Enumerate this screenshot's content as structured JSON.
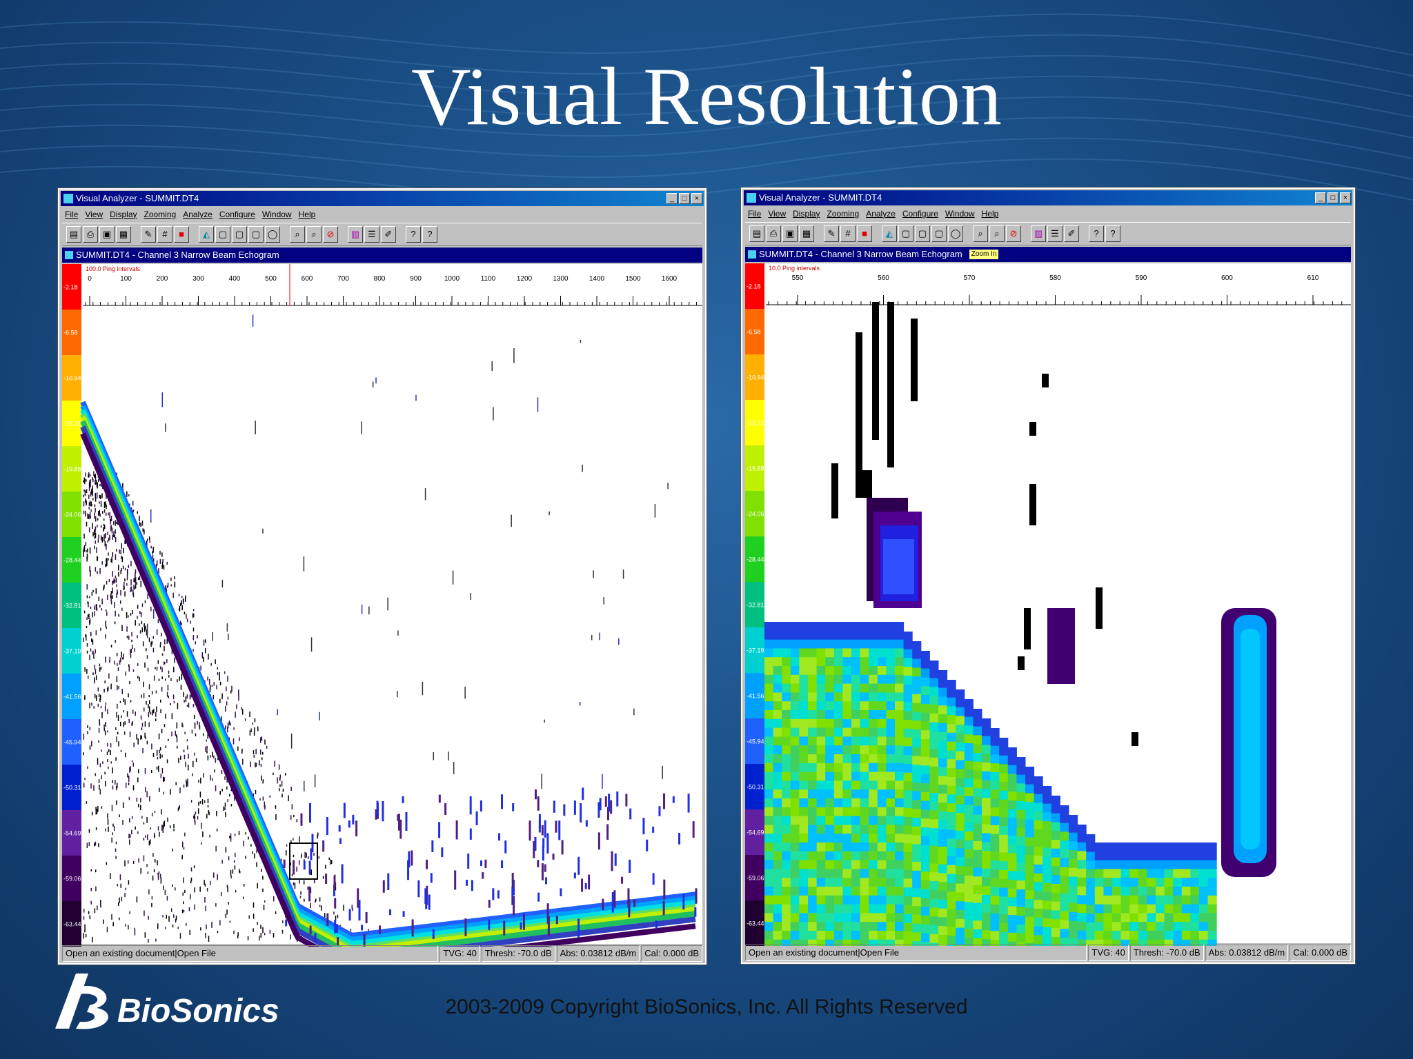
{
  "slide": {
    "title": "Visual Resolution",
    "copyright": "2003-2009 Copyright BioSonics, Inc.  All Rights Reserved",
    "logo_text": "BioSonics"
  },
  "colors": {
    "titlebar": "#000080",
    "scale": [
      "#ff0000",
      "#ff6a00",
      "#ffb000",
      "#ffff00",
      "#c0f000",
      "#80e000",
      "#20d020",
      "#00c080",
      "#00d0d0",
      "#00a0ff",
      "#2060ff",
      "#0020d0",
      "#6020a0",
      "#400060",
      "#200030"
    ]
  },
  "windows": [
    {
      "title": "Visual Analyzer - SUMMIT.DT4",
      "menu": [
        "File",
        "View",
        "Display",
        "Zooming",
        "Analyze",
        "Configure",
        "Window",
        "Help"
      ],
      "toolbar_icons": [
        "open-icon",
        "print-icon",
        "save-icon",
        "calc-icon",
        "edit-icon",
        "grid-icon",
        "color-icon",
        "chart-icon",
        "blank1-icon",
        "blank2-icon",
        "blank3-icon",
        "blank4-icon",
        "zoom-in-icon",
        "zoom-out-icon",
        "stop-icon",
        "palette-icon",
        "list-icon",
        "draw-icon",
        "help-icon",
        "context-help-icon"
      ],
      "subtitle": "SUMMIT.DT4 - Channel 3 Narrow Beam Echogram",
      "badge": "",
      "ping_label": "100.0 Ping intervals",
      "x_ticks": [
        "0",
        "100",
        "200",
        "300",
        "400",
        "500",
        "600",
        "700",
        "800",
        "900",
        "1000",
        "1100",
        "1200",
        "1300",
        "1400",
        "1500",
        "1600"
      ],
      "db_scale": [
        "-2.18",
        "-6.58",
        "-10.94",
        "-15.31",
        "-19.88",
        "-24.06",
        "-28.44",
        "-32.81",
        "-37.19",
        "-41.56",
        "-45.94",
        "-50.31",
        "-54.69",
        "-59.06",
        "-63.44"
      ],
      "status": {
        "message": "Open an existing document|Open File",
        "tvg": "TVG: 40",
        "thresh": "Thresh: -70.0 dB",
        "abs": "Abs: 0.03812 dB/m",
        "cal": "Cal: 0.000 dB"
      }
    },
    {
      "title": "Visual Analyzer - SUMMIT.DT4",
      "menu": [
        "File",
        "View",
        "Display",
        "Zooming",
        "Analyze",
        "Configure",
        "Window",
        "Help"
      ],
      "toolbar_icons": [
        "open-icon",
        "print-icon",
        "save-icon",
        "calc-icon",
        "edit-icon",
        "grid-icon",
        "color-icon",
        "chart-icon",
        "blank1-icon",
        "blank2-icon",
        "blank3-icon",
        "blank4-icon",
        "zoom-in-icon",
        "zoom-out-icon",
        "stop-icon",
        "palette-icon",
        "list-icon",
        "draw-icon",
        "help-icon",
        "context-help-icon"
      ],
      "subtitle": "SUMMIT.DT4 - Channel 3 Narrow Beam Echogram",
      "badge": "Zoom In",
      "ping_label": "10.0 Ping intervals",
      "x_ticks": [
        "550",
        "560",
        "570",
        "580",
        "590",
        "600",
        "610"
      ],
      "db_scale": [
        "-2.18",
        "-6.58",
        "-10.94",
        "-15.31",
        "-19.88",
        "-24.06",
        "-28.44",
        "-32.81",
        "-37.19",
        "-41.56",
        "-45.94",
        "-50.31",
        "-54.69",
        "-59.06",
        "-63.44"
      ],
      "status": {
        "message": "Open an existing document|Open File",
        "tvg": "TVG: 40",
        "thresh": "Thresh: -70.0 dB",
        "abs": "Abs: 0.03812 dB/m",
        "cal": "Cal: 0.000 dB"
      }
    }
  ]
}
